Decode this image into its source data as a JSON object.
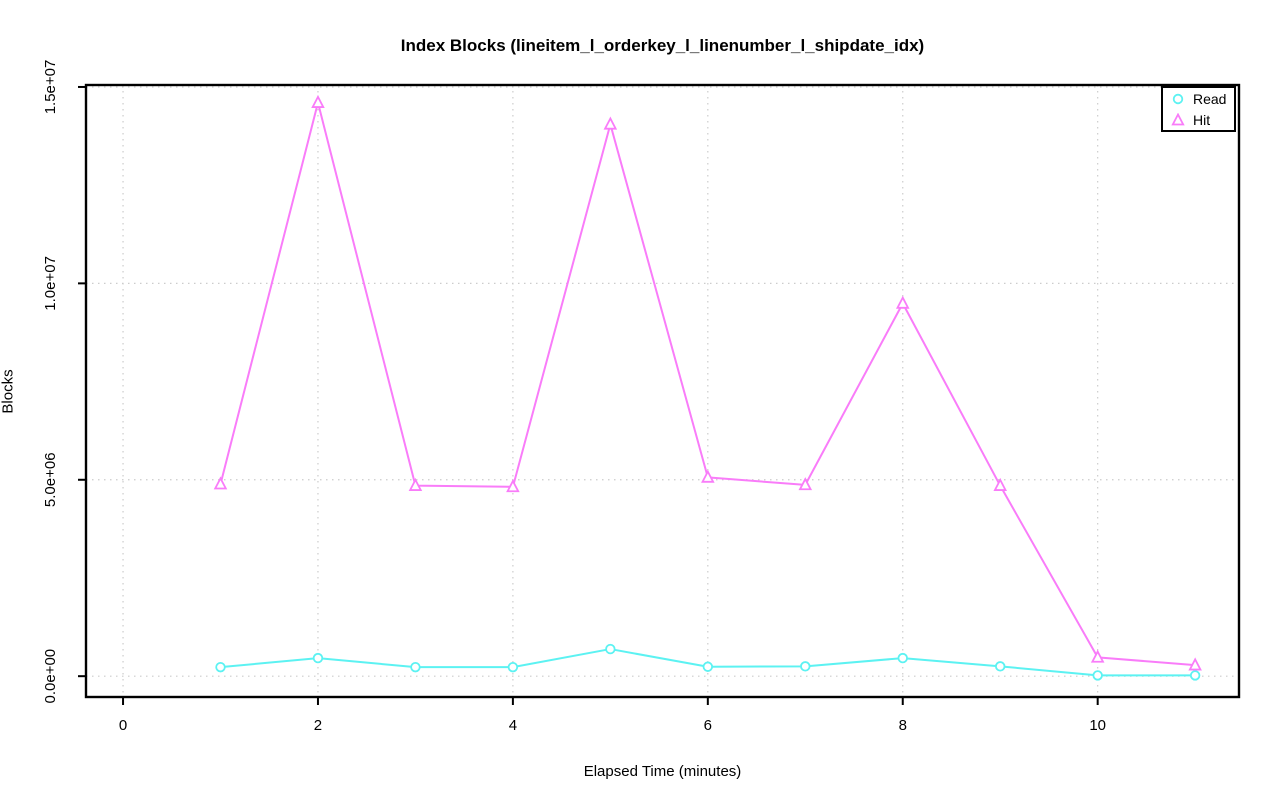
{
  "chart_data": {
    "type": "line",
    "title": "Index Blocks (lineitem_l_orderkey_l_linenumber_l_shipdate_idx)",
    "xlabel": "Elapsed Time (minutes)",
    "ylabel": "Blocks",
    "x": [
      1,
      2,
      3,
      4,
      5,
      6,
      7,
      8,
      9,
      10,
      11
    ],
    "series": [
      {
        "name": "Read",
        "marker": "circle",
        "color": "#5CF2F2",
        "values": [
          230000,
          460000,
          230000,
          230000,
          690000,
          240000,
          250000,
          460000,
          250000,
          20000,
          20000
        ]
      },
      {
        "name": "Hit",
        "marker": "triangle",
        "color": "#F97CF9",
        "values": [
          4890000,
          14600000,
          4850000,
          4820000,
          14050000,
          5060000,
          4870000,
          9490000,
          4850000,
          480000,
          280000
        ]
      }
    ],
    "xticks": [
      0,
      2,
      4,
      6,
      8,
      10
    ],
    "yticks": [
      {
        "value": 0,
        "label": "0.0e+00"
      },
      {
        "value": 5000000,
        "label": "5.0e+06"
      },
      {
        "value": 10000000,
        "label": "1.0e+07"
      },
      {
        "value": 15000000,
        "label": "1.5e+07"
      }
    ],
    "xlim": [
      -0.38,
      11.45
    ],
    "ylim": [
      -530000,
      15050000
    ],
    "grid": true,
    "legend_position": "top-right",
    "colors": {
      "grid": "#cccccc",
      "axis": "#000000",
      "background": "#ffffff"
    }
  }
}
